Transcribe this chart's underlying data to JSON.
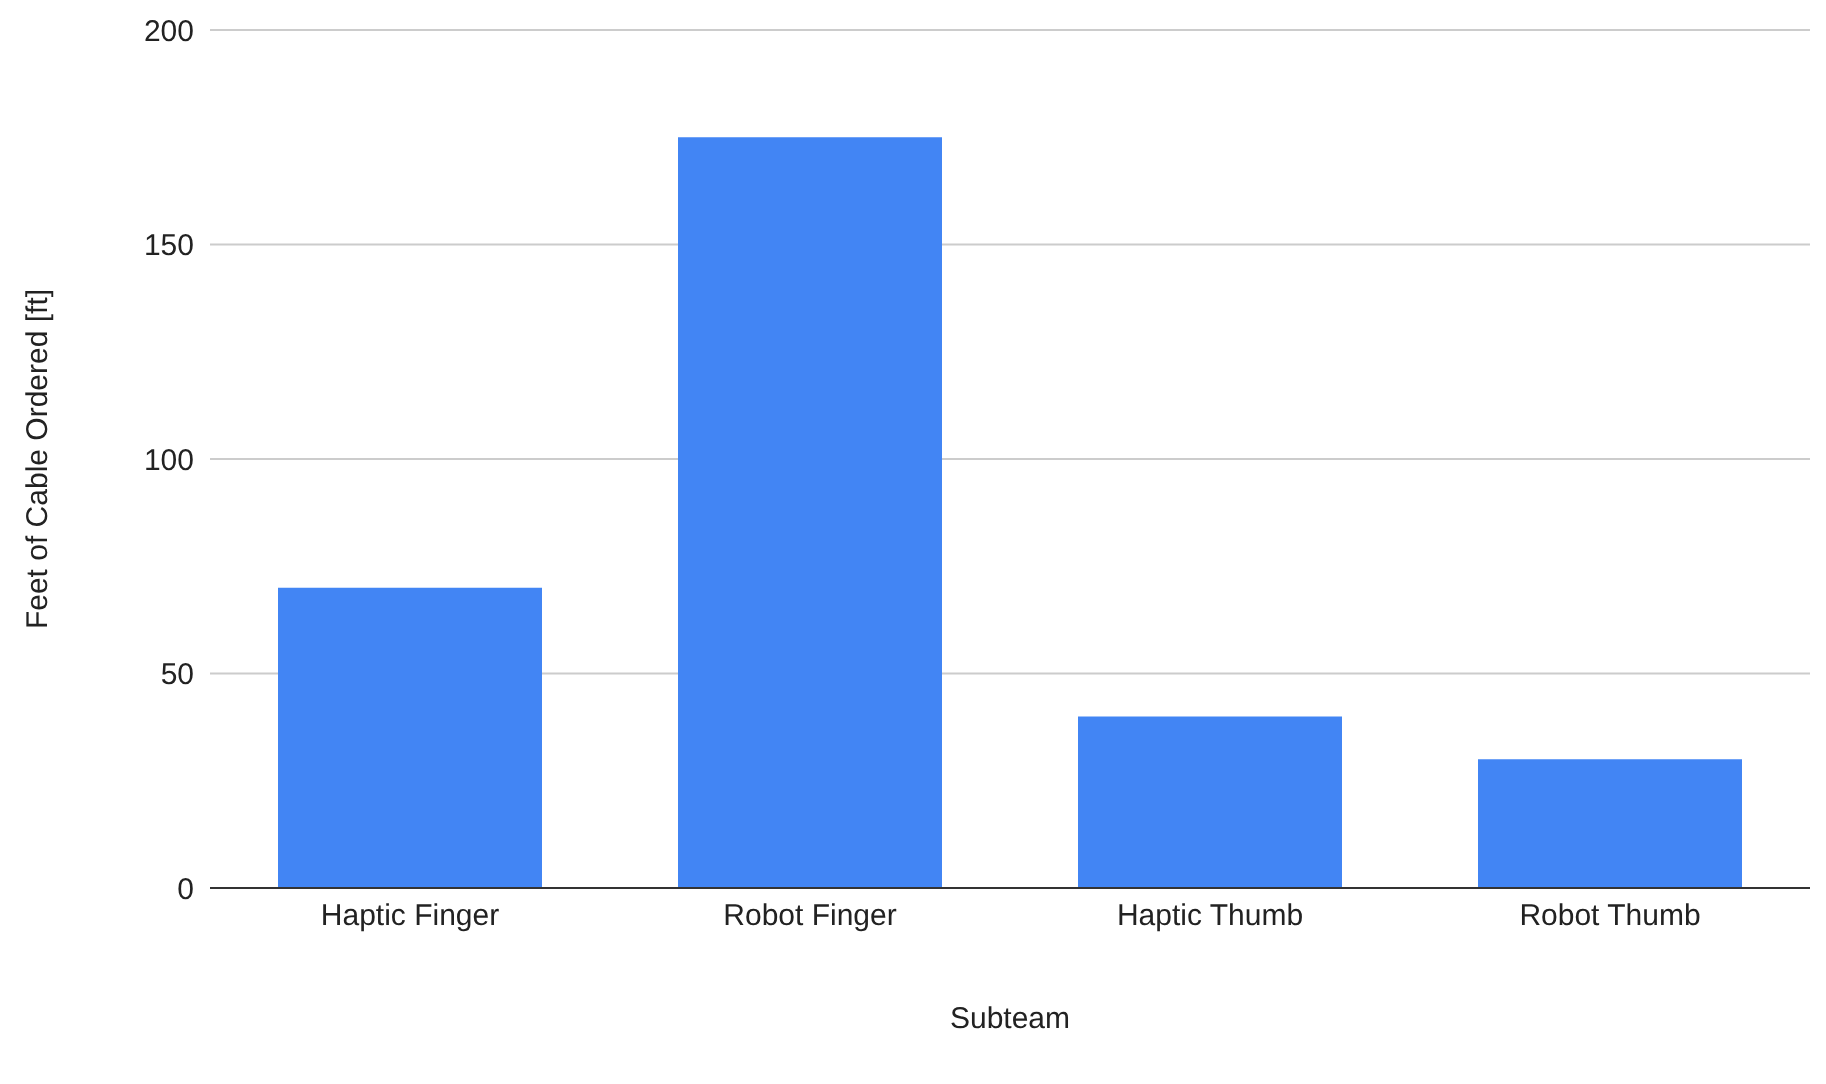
{
  "chart_data": {
    "type": "bar",
    "xlabel": "Subteam",
    "ylabel": "Feet of Cable Ordered [ft]",
    "categories": [
      "Haptic Finger",
      "Robot Finger",
      "Haptic Thumb",
      "Robot Thumb"
    ],
    "values": [
      70,
      175,
      40,
      30
    ],
    "color": "#4285f4",
    "ylim": [
      0,
      200
    ],
    "yticks": [
      0,
      50,
      100,
      150,
      200
    ],
    "grid": "y",
    "legend": false
  }
}
